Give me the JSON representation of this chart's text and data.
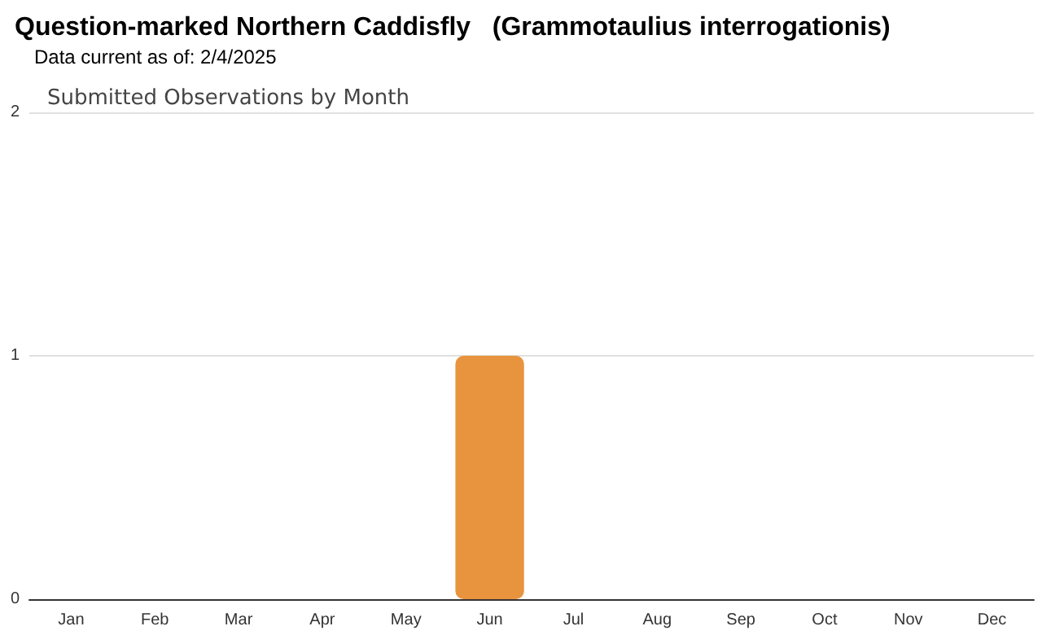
{
  "chart_data": {
    "type": "bar",
    "title": "Question-marked Northern Caddisfly   (Grammotaulius interrogationis)",
    "subtitle": "Data current as of: 2/4/2025",
    "annotations": [
      "Submitted Observations by Month"
    ],
    "categories": [
      "Jan",
      "Feb",
      "Mar",
      "Apr",
      "May",
      "Jun",
      "Jul",
      "Aug",
      "Sep",
      "Oct",
      "Nov",
      "Dec"
    ],
    "values": [
      0,
      0,
      0,
      0,
      0,
      1,
      0,
      0,
      0,
      0,
      0,
      0
    ],
    "color": "#e8943e",
    "ylim": [
      0,
      2
    ],
    "yticks": [
      0,
      1,
      2
    ],
    "grid": "y"
  }
}
